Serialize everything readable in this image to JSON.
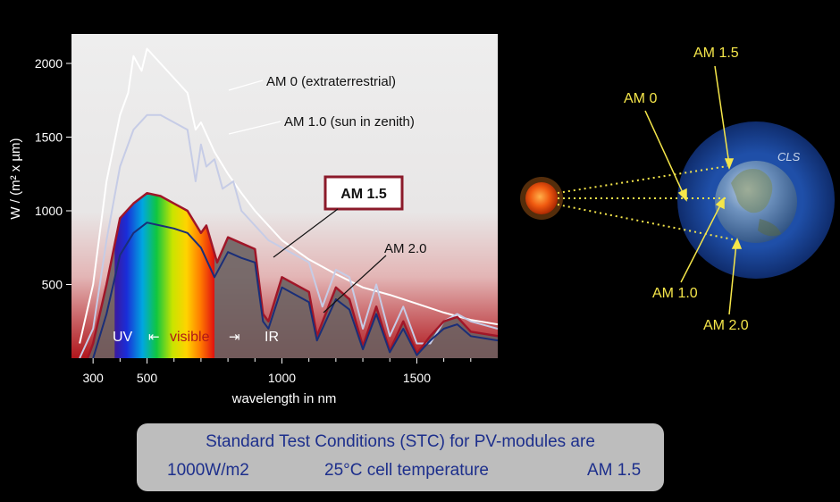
{
  "chart_data": {
    "type": "line",
    "ylabel": "W / (m² x µm)",
    "xlabel": "wavelength in nm",
    "xlim": [
      220,
      1800
    ],
    "ylim": [
      0,
      2200
    ],
    "x_ticks": [
      300,
      500,
      1000,
      1500
    ],
    "y_ticks": [
      500,
      1000,
      1500,
      2000
    ],
    "grid": false,
    "regions": {
      "uv": "UV",
      "visible": "visible",
      "ir": "IR",
      "arrow_left": "⇤",
      "arrow_right": "⇥"
    },
    "series": [
      {
        "name": "AM 0 (extraterrestrial)",
        "color": "#ffffff",
        "x": [
          250,
          300,
          350,
          400,
          430,
          450,
          480,
          500,
          550,
          600,
          650,
          680,
          700,
          750,
          800,
          850,
          900,
          1000,
          1100,
          1200,
          1300,
          1400,
          1500,
          1600,
          1700,
          1800
        ],
        "y": [
          100,
          500,
          1200,
          1650,
          1800,
          2050,
          1950,
          2100,
          2000,
          1900,
          1800,
          1550,
          1600,
          1400,
          1250,
          1120,
          1000,
          800,
          670,
          570,
          480,
          430,
          370,
          310,
          260,
          230
        ]
      },
      {
        "name": "AM 1.0 (sun in zenith)",
        "color": "#c6cce6",
        "x": [
          250,
          300,
          350,
          400,
          450,
          500,
          550,
          600,
          650,
          680,
          700,
          720,
          750,
          780,
          820,
          850,
          900,
          950,
          1000,
          1050,
          1100,
          1150,
          1200,
          1250,
          1300,
          1350,
          1400,
          1450,
          1500,
          1550,
          1600,
          1650,
          1700,
          1800
        ],
        "y": [
          0,
          200,
          800,
          1300,
          1550,
          1650,
          1650,
          1600,
          1550,
          1200,
          1450,
          1300,
          1350,
          1150,
          1200,
          1000,
          900,
          800,
          750,
          700,
          650,
          350,
          600,
          550,
          200,
          500,
          150,
          350,
          100,
          100,
          250,
          300,
          250,
          200
        ]
      },
      {
        "name": "AM 1.5",
        "color": "#a01628",
        "x": [
          280,
          300,
          350,
          400,
          450,
          500,
          550,
          600,
          650,
          700,
          720,
          760,
          800,
          850,
          900,
          930,
          950,
          1000,
          1100,
          1130,
          1200,
          1250,
          1300,
          1350,
          1400,
          1450,
          1500,
          1550,
          1600,
          1650,
          1700,
          1800
        ],
        "y": [
          0,
          100,
          500,
          950,
          1050,
          1120,
          1100,
          1050,
          1000,
          850,
          900,
          650,
          820,
          780,
          740,
          300,
          250,
          550,
          450,
          150,
          480,
          400,
          80,
          350,
          50,
          250,
          30,
          150,
          250,
          280,
          180,
          150
        ]
      },
      {
        "name": "AM 2.0",
        "color": "#1a2e78",
        "x": [
          300,
          350,
          400,
          450,
          500,
          550,
          600,
          650,
          700,
          750,
          800,
          850,
          900,
          930,
          950,
          1000,
          1100,
          1130,
          1200,
          1250,
          1300,
          1350,
          1400,
          1450,
          1500,
          1550,
          1600,
          1650,
          1700,
          1800
        ],
        "y": [
          0,
          300,
          700,
          850,
          920,
          900,
          880,
          850,
          750,
          550,
          720,
          680,
          650,
          250,
          200,
          480,
          380,
          120,
          400,
          330,
          60,
          300,
          40,
          200,
          20,
          120,
          200,
          230,
          150,
          120
        ]
      }
    ],
    "annotations": [
      {
        "text": "AM 0 (extraterrestrial)",
        "boxed": false
      },
      {
        "text": "AM 1.0 (sun in zenith)",
        "boxed": false
      },
      {
        "text": "AM 1.5",
        "boxed": true
      },
      {
        "text": "AM 2.0",
        "boxed": false
      }
    ]
  },
  "diagram": {
    "labels": [
      "AM 1.5",
      "AM 0",
      "AM 1.0",
      "AM 2.0"
    ],
    "earth_text": "CLS",
    "label_color": "#f5e64a"
  },
  "stc": {
    "title": "Standard Test Conditions (STC) for PV-modules are",
    "irradiance": "1000W/m2",
    "temperature": "25°C cell temperature",
    "airmass": "AM 1.5"
  }
}
